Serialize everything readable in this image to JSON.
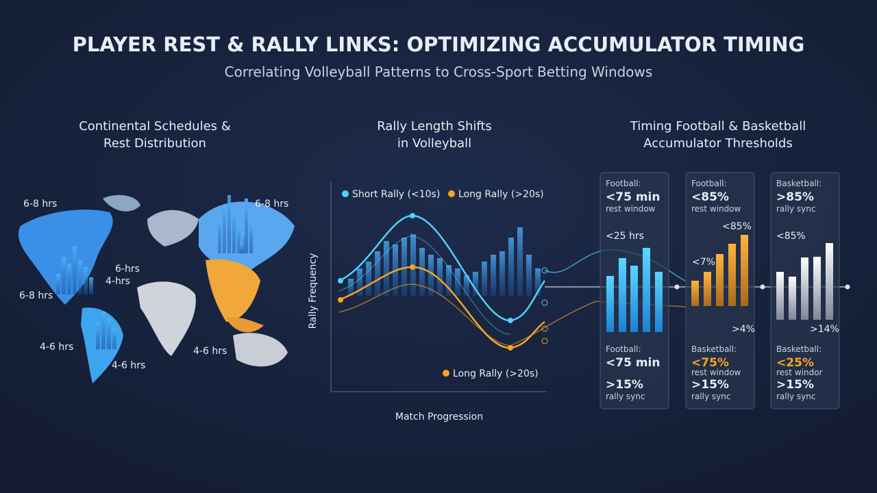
{
  "header": {
    "title": "PLAYER REST & RALLY LINKS: OPTIMIZING ACCUMULATOR TIMING",
    "subtitle": "Correlating Volleyball Patterns to Cross-Sport Betting Windows"
  },
  "panels": [
    {
      "title": [
        "Continental Schedules &",
        "Rest Distribution"
      ],
      "map_labels": [
        "6-8 hrs",
        "6-8 hrs",
        "6-hrs",
        "4-hrs",
        "6-8 hrs",
        "4-6 hrs",
        "4-6 hrs",
        "4-6 hrs"
      ]
    },
    {
      "title": [
        "Rally Length Shifts",
        "in Volleyball"
      ],
      "legend": [
        "Short Rally (<10s)",
        "Long Rally (>20s)"
      ],
      "y_label": "Rally Frequency",
      "x_label": "Match Progression",
      "annotation": "Long Rally (>20s)"
    },
    {
      "title": [
        "Timing Football & Basketball",
        "Accumulator Thresholds"
      ],
      "cards": [
        {
          "top": {
            "label": "Football:",
            "value": "<75 min",
            "sub": "rest window"
          },
          "notes": [
            "<25 hrs"
          ],
          "bottom": {
            "label": "Football:",
            "value": "<75 min",
            "value2": ">15%",
            "sub2": "rally sync"
          }
        },
        {
          "top": {
            "label": "Football:",
            "value": "<85%",
            "sub": "rest window"
          },
          "notes": [
            "<85%",
            "<7%",
            ">4%"
          ],
          "bottom": {
            "label": "Basketball:",
            "value": "<75%",
            "sub": "rest window",
            "value2": ">15%",
            "sub2": "rally sync"
          }
        },
        {
          "top": {
            "label": "Basketball:",
            "value": ">85%",
            "sub": "rally sync"
          },
          "notes": [
            "<85%",
            ">14%"
          ],
          "bottom": {
            "label": "Basketball:",
            "value": "<25%",
            "sub": "rest windor",
            "value2": ">15%",
            "sub2": "rally sync"
          }
        }
      ]
    }
  ]
}
